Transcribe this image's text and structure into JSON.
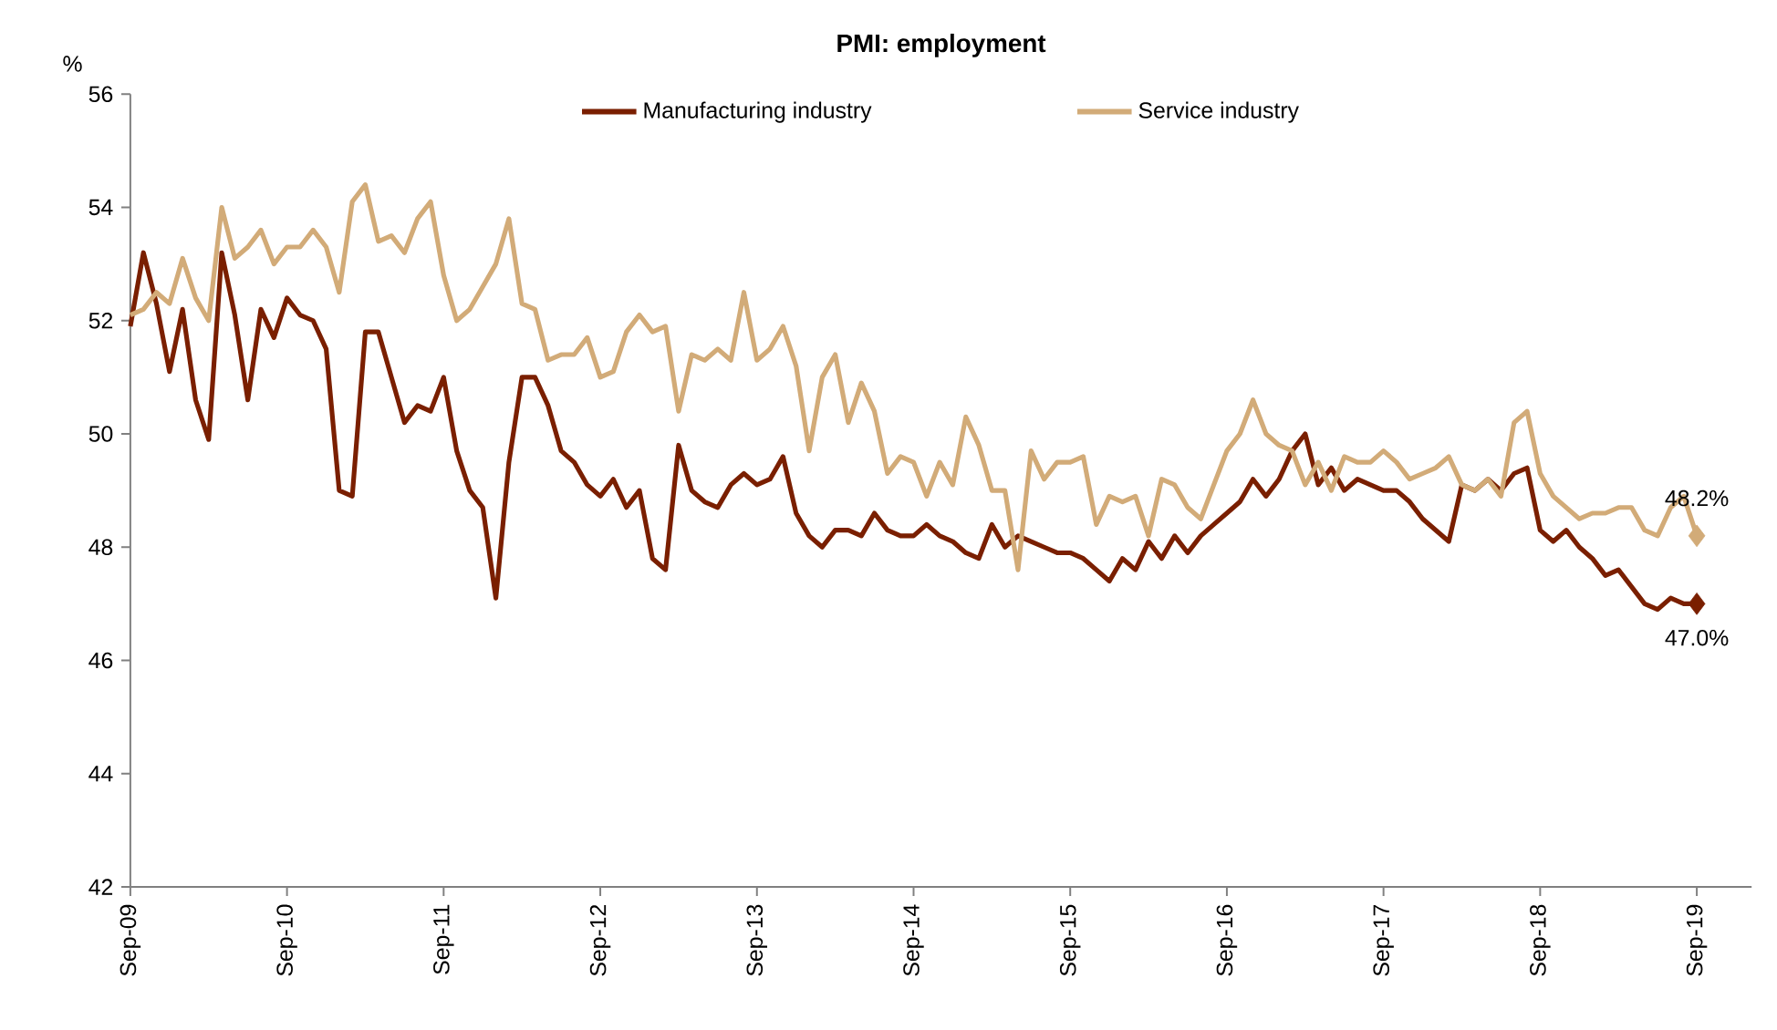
{
  "chart_data": {
    "type": "line",
    "title": "PMI: employment",
    "ylabel": "%",
    "categories": [
      "Sep-09",
      null,
      null,
      null,
      null,
      null,
      null,
      null,
      null,
      null,
      null,
      null,
      "Sep-10",
      null,
      null,
      null,
      null,
      null,
      null,
      null,
      null,
      null,
      null,
      null,
      "Sep-11",
      null,
      null,
      null,
      null,
      null,
      null,
      null,
      null,
      null,
      null,
      null,
      "Sep-12",
      null,
      null,
      null,
      null,
      null,
      null,
      null,
      null,
      null,
      null,
      null,
      "Sep-13",
      null,
      null,
      null,
      null,
      null,
      null,
      null,
      null,
      null,
      null,
      null,
      "Sep-14",
      null,
      null,
      null,
      null,
      null,
      null,
      null,
      null,
      null,
      null,
      null,
      "Sep-15",
      null,
      null,
      null,
      null,
      null,
      null,
      null,
      null,
      null,
      null,
      null,
      "Sep-16",
      null,
      null,
      null,
      null,
      null,
      null,
      null,
      null,
      null,
      null,
      null,
      "Sep-17",
      null,
      null,
      null,
      null,
      null,
      null,
      null,
      null,
      null,
      null,
      null,
      "Sep-18",
      null,
      null,
      null,
      null,
      null,
      null,
      null,
      null,
      null,
      null,
      null,
      "Sep-19"
    ],
    "series": [
      {
        "name": "Manufacturing industry",
        "color": "#7a1f00",
        "values": [
          51.9,
          53.2,
          52.3,
          51.1,
          52.2,
          50.6,
          49.9,
          53.2,
          52.1,
          50.6,
          52.2,
          51.7,
          52.4,
          52.1,
          52.0,
          51.5,
          49.0,
          48.9,
          51.8,
          51.8,
          51.0,
          50.2,
          50.5,
          50.4,
          51.0,
          49.7,
          49.0,
          48.7,
          47.1,
          49.5,
          51.0,
          51.0,
          50.5,
          49.7,
          49.5,
          49.1,
          48.9,
          49.2,
          48.7,
          49.0,
          47.8,
          47.6,
          49.8,
          49.0,
          48.8,
          48.7,
          49.1,
          49.3,
          49.1,
          49.2,
          49.6,
          48.6,
          48.2,
          48.0,
          48.3,
          48.3,
          48.2,
          48.6,
          48.3,
          48.2,
          48.2,
          48.4,
          48.2,
          48.1,
          47.9,
          47.8,
          48.4,
          48.0,
          48.2,
          48.1,
          48.0,
          47.9,
          47.9,
          47.8,
          47.6,
          47.4,
          47.8,
          47.6,
          48.1,
          47.8,
          48.2,
          47.9,
          48.2,
          48.4,
          48.6,
          48.8,
          49.2,
          48.9,
          49.2,
          49.7,
          50.0,
          49.1,
          49.4,
          49.0,
          49.2,
          49.1,
          49.0,
          49.0,
          48.8,
          48.5,
          48.3,
          48.1,
          49.1,
          49.0,
          49.2,
          49.0,
          49.3,
          49.4,
          48.3,
          48.1,
          48.3,
          48.0,
          47.8,
          47.5,
          47.6,
          47.3,
          47.0,
          46.9,
          47.1,
          47.0,
          47.0
        ],
        "value_labels": [
          null,
          null,
          null,
          null,
          null,
          null,
          null,
          null,
          null,
          null,
          null,
          null,
          null,
          null,
          null,
          null,
          null,
          null,
          null,
          null,
          null,
          null,
          null,
          null,
          null,
          null,
          null,
          null,
          null,
          null,
          null,
          null,
          null,
          null,
          null,
          null,
          null,
          null,
          null,
          null,
          null,
          null,
          null,
          null,
          null,
          null,
          null,
          null,
          null,
          null,
          null,
          null,
          null,
          null,
          null,
          null,
          null,
          null,
          null,
          null,
          null,
          null,
          null,
          null,
          null,
          null,
          null,
          null,
          null,
          null,
          null,
          null,
          null,
          null,
          null,
          null,
          null,
          null,
          null,
          null,
          null,
          null,
          null,
          null,
          null,
          null,
          null,
          null,
          null,
          null,
          null,
          null,
          null,
          null,
          null,
          null,
          null,
          null,
          null,
          null,
          null,
          null,
          null,
          null,
          null,
          null,
          null,
          null,
          null,
          null,
          null,
          null,
          null,
          null,
          null,
          null,
          null,
          null,
          null,
          null,
          "47.0%"
        ]
      },
      {
        "name": "Service industry",
        "color": "#d2ab78",
        "values": [
          52.1,
          52.2,
          52.5,
          52.3,
          53.1,
          52.4,
          52.0,
          54.0,
          53.1,
          53.3,
          53.6,
          53.0,
          53.3,
          53.3,
          53.6,
          53.3,
          52.5,
          54.1,
          54.4,
          53.4,
          53.5,
          53.2,
          53.8,
          54.1,
          52.8,
          52.0,
          52.2,
          52.6,
          53.0,
          53.8,
          52.3,
          52.2,
          51.3,
          51.4,
          51.4,
          51.7,
          51.0,
          51.1,
          51.8,
          52.1,
          51.8,
          51.9,
          50.4,
          51.4,
          51.3,
          51.5,
          51.3,
          52.5,
          51.3,
          51.5,
          51.9,
          51.2,
          49.7,
          51.0,
          51.4,
          50.2,
          50.9,
          50.4,
          49.3,
          49.6,
          49.5,
          48.9,
          49.5,
          49.1,
          50.3,
          49.8,
          49.0,
          49.0,
          47.6,
          49.7,
          49.2,
          49.5,
          49.5,
          49.6,
          48.4,
          48.9,
          48.8,
          48.9,
          48.2,
          49.2,
          49.1,
          48.7,
          48.5,
          49.1,
          49.7,
          50.0,
          50.6,
          50.0,
          49.8,
          49.7,
          49.1,
          49.5,
          49.0,
          49.6,
          49.5,
          49.5,
          49.7,
          49.5,
          49.2,
          49.3,
          49.4,
          49.6,
          49.1,
          49.0,
          49.2,
          48.9,
          50.2,
          50.4,
          49.3,
          48.9,
          48.7,
          48.5,
          48.6,
          48.6,
          48.7,
          48.7,
          48.3,
          48.2,
          48.7,
          48.9,
          48.2
        ],
        "value_labels": [
          null,
          null,
          null,
          null,
          null,
          null,
          null,
          null,
          null,
          null,
          null,
          null,
          null,
          null,
          null,
          null,
          null,
          null,
          null,
          null,
          null,
          null,
          null,
          null,
          null,
          null,
          null,
          null,
          null,
          null,
          null,
          null,
          null,
          null,
          null,
          null,
          null,
          null,
          null,
          null,
          null,
          null,
          null,
          null,
          null,
          null,
          null,
          null,
          null,
          null,
          null,
          null,
          null,
          null,
          null,
          null,
          null,
          null,
          null,
          null,
          null,
          null,
          null,
          null,
          null,
          null,
          null,
          null,
          null,
          null,
          null,
          null,
          null,
          null,
          null,
          null,
          null,
          null,
          null,
          null,
          null,
          null,
          null,
          null,
          null,
          null,
          null,
          null,
          null,
          null,
          null,
          null,
          null,
          null,
          null,
          null,
          null,
          null,
          null,
          null,
          null,
          null,
          null,
          null,
          null,
          null,
          null,
          null,
          null,
          null,
          null,
          null,
          null,
          null,
          null,
          null,
          null,
          null,
          null,
          null,
          "48.2%"
        ]
      }
    ],
    "ylim": [
      42,
      56
    ],
    "yticks": [
      42,
      44,
      46,
      48,
      50,
      52,
      54,
      56
    ],
    "grid": false,
    "legend": "top",
    "line_style": "solid",
    "marker": "none"
  }
}
